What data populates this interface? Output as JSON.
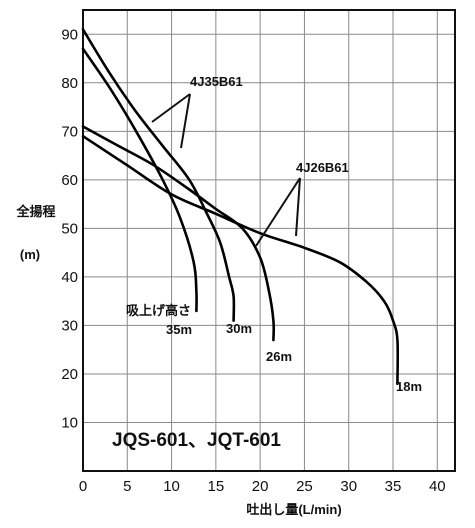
{
  "chart_data": {
    "type": "line",
    "title": "JQS-601、JQT-601",
    "xlabel": "吐出し量(L/min)",
    "ylabel": "全揚程",
    "ylabel_unit": "(m)",
    "xlim": [
      0,
      42
    ],
    "ylim": [
      0,
      95
    ],
    "x_ticks": [
      0,
      5,
      10,
      15,
      20,
      25,
      30,
      35,
      40
    ],
    "y_ticks": [
      10,
      20,
      30,
      40,
      50,
      60,
      70,
      80,
      90
    ],
    "grid": true,
    "series": [
      {
        "name": "4J35B61",
        "suction_label": "35m",
        "color": "#000000",
        "x": [
          0,
          3,
          6,
          9,
          11,
          12.5,
          12.8,
          12.8
        ],
        "y": [
          87,
          79,
          70,
          60,
          52,
          43,
          37,
          33
        ]
      },
      {
        "name": "4J35B61",
        "suction_label": "30m",
        "color": "#000000",
        "x": [
          0,
          3,
          6,
          9,
          12,
          14,
          15.5,
          16.5,
          17,
          17
        ],
        "y": [
          91,
          82,
          74,
          67,
          60,
          53,
          47,
          40,
          36,
          31
        ]
      },
      {
        "name": "4J26B61",
        "suction_label": "26m",
        "color": "#000000",
        "x": [
          0,
          4,
          8,
          12,
          15,
          18,
          20,
          21,
          21.5,
          21.5
        ],
        "y": [
          71,
          67,
          63,
          58,
          54,
          50,
          44,
          37,
          31,
          27
        ]
      },
      {
        "name": "4J26B61",
        "suction_label": "18m",
        "color": "#000000",
        "x": [
          0,
          5,
          10,
          15,
          20,
          25,
          29,
          32,
          34,
          35,
          35.5,
          35.5
        ],
        "y": [
          69,
          63,
          57,
          53,
          49,
          46,
          43,
          39,
          35,
          31,
          27,
          18
        ]
      }
    ],
    "annotations": {
      "model_a": "4J35B61",
      "model_b": "4J26B61",
      "suction_height": "吸上げ高さ",
      "suction_values": [
        "35m",
        "30m",
        "26m",
        "18m"
      ]
    }
  }
}
